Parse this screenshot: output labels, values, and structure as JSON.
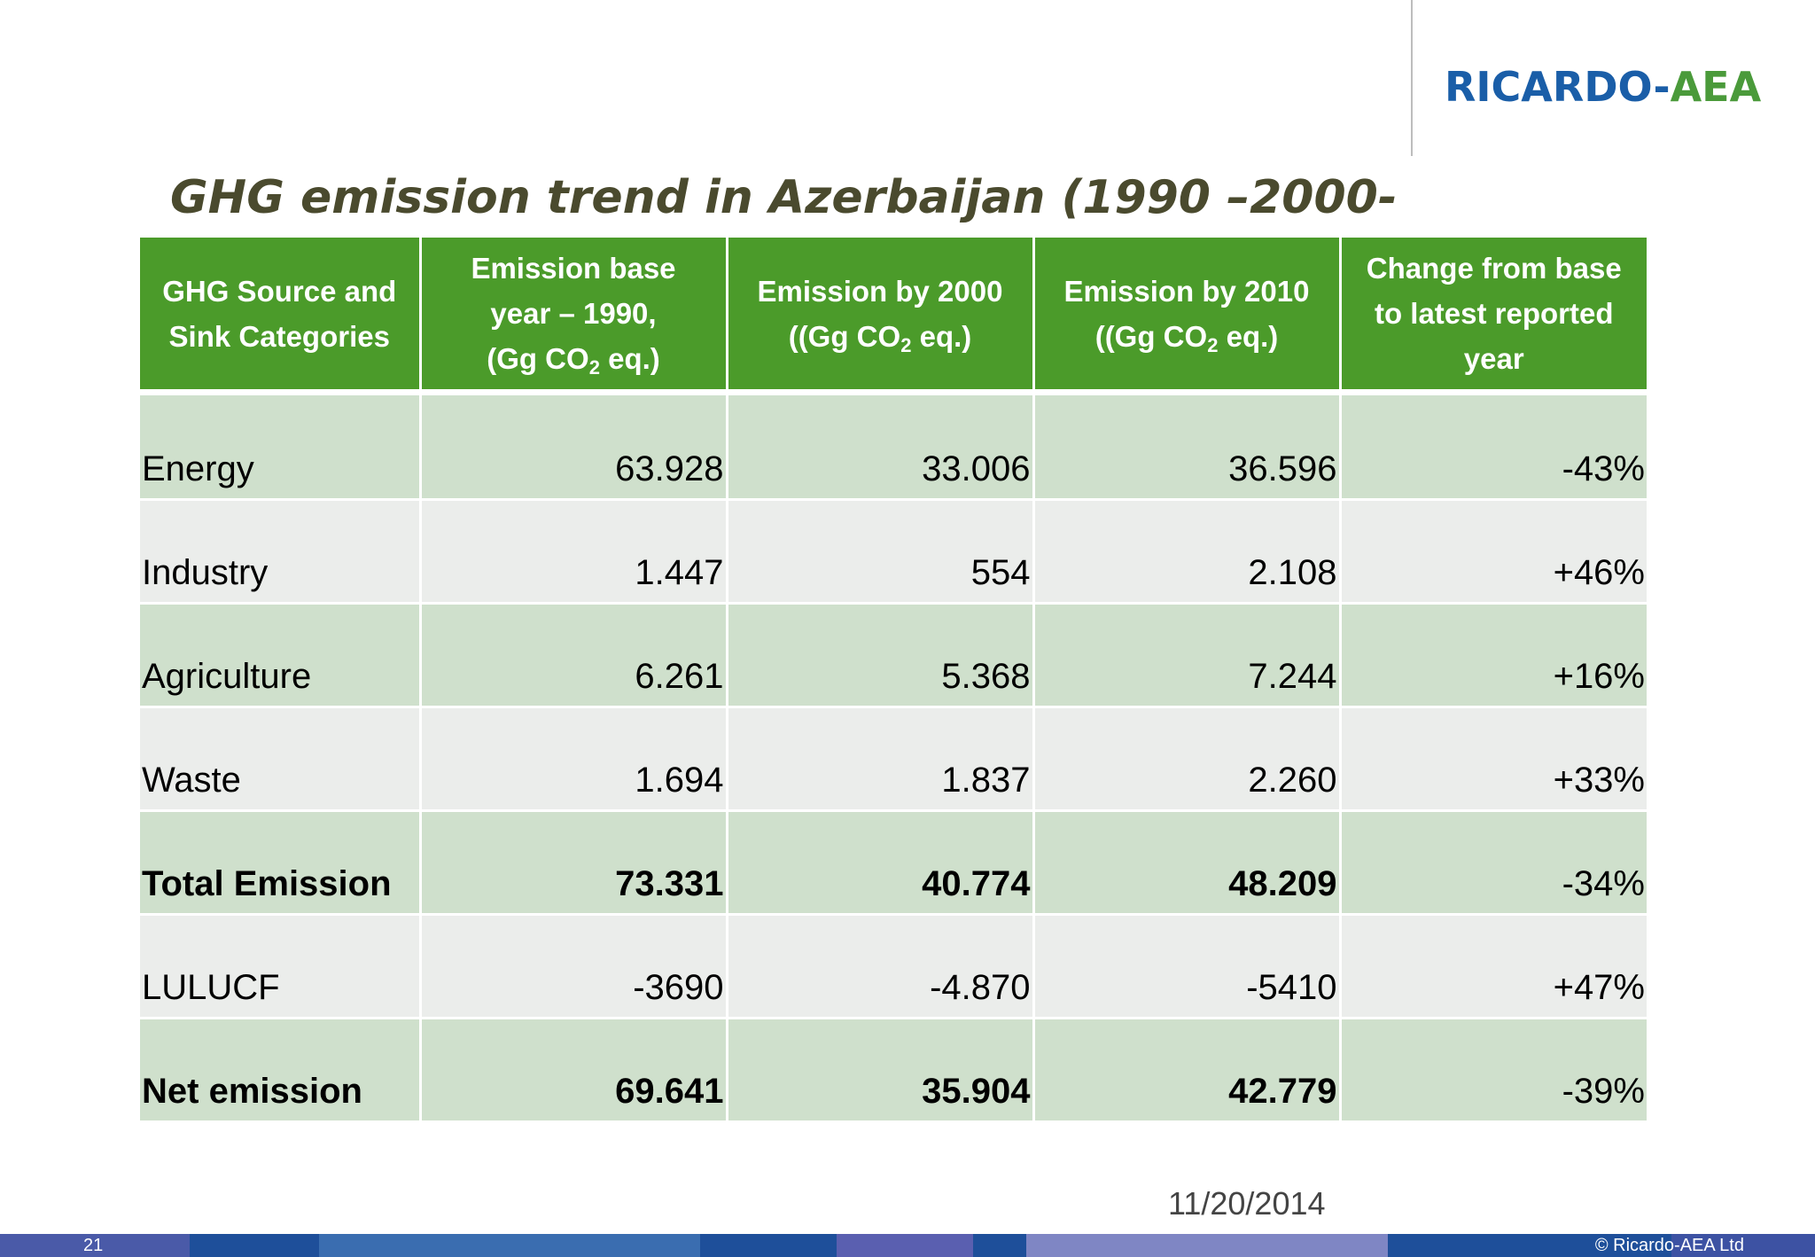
{
  "logo": {
    "part_a": "RICARDO",
    "dash": "-",
    "part_b": "AEA"
  },
  "title": "GHG emission trend in Azerbaijan (1990 –2000-",
  "table": {
    "headers": [
      {
        "lines": [
          "GHG Source and",
          "Sink Categories"
        ]
      },
      {
        "line1": "Emission base",
        "line2": "year – 1990,",
        "line3_pre": "(Gg CO",
        "line3_sub": "2",
        "line3_post": " eq.)"
      },
      {
        "line1": "Emission by 2000",
        "line2_pre": "((Gg CO",
        "line2_sub": "2",
        "line2_post": " eq.)"
      },
      {
        "line1": "Emission by 2010",
        "line2_pre": "((Gg CO",
        "line2_sub": "2",
        "line2_post": " eq.)"
      },
      {
        "lines": [
          "Change from base",
          "to latest reported",
          "year"
        ]
      }
    ],
    "rows": [
      {
        "category": "Energy",
        "base_1990": "63.928",
        "by_2000": "33.006",
        "by_2010": "36.596",
        "change": "-43%"
      },
      {
        "category": "Industry",
        "base_1990": "1.447",
        "by_2000": "554",
        "by_2010": "2.108",
        "change": "+46%"
      },
      {
        "category": "Agriculture",
        "base_1990": "6.261",
        "by_2000": "5.368",
        "by_2010": "7.244",
        "change": "+16%"
      },
      {
        "category": "Waste",
        "base_1990": "1.694",
        "by_2000": "1.837",
        "by_2010": "2.260",
        "change": "+33%"
      },
      {
        "category": "Total Emission",
        "base_1990": "73.331",
        "by_2000": "40.774",
        "by_2010": "48.209",
        "change": "-34%"
      },
      {
        "category": "LULUCF",
        "base_1990": "-3690",
        "by_2000": "-4.870",
        "by_2010": "-5410",
        "change": "+47%"
      },
      {
        "category": "Net emission",
        "base_1990": "69.641",
        "by_2000": "35.904",
        "by_2010": "42.779",
        "change": "-39%"
      }
    ]
  },
  "date": "11/20/2014",
  "footer": {
    "page_number": "21",
    "copyright": "© Ricardo-AEA Ltd",
    "colors": [
      "#4a5aa8",
      "#1e4f9a",
      "#3a6db0",
      "#1e4f9a",
      "#5a5fb0",
      "#1e4f9a",
      "#7f86c4",
      "#1e4f9a",
      "#3d52a3"
    ]
  },
  "colors": {
    "header_green": "#4b9b2a",
    "row_green": "#cfe0cc",
    "row_grey": "#ebedeb",
    "logo_blue": "#1a5ea8",
    "logo_green": "#4a9a3a",
    "title_color": "#4a4a2e"
  }
}
